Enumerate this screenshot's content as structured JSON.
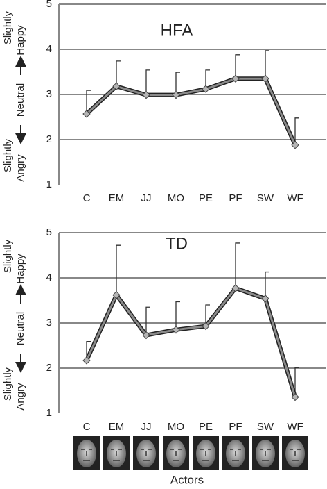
{
  "chart_data": [
    {
      "type": "line",
      "title": "HFA",
      "categories": [
        "C",
        "EM",
        "JJ",
        "MO",
        "PE",
        "PF",
        "SW",
        "WF"
      ],
      "series": [
        {
          "values": [
            2.57,
            3.18,
            2.99,
            2.99,
            3.12,
            3.35,
            3.35,
            1.88
          ],
          "errors": [
            0.52,
            0.56,
            0.55,
            0.5,
            0.42,
            0.53,
            0.62,
            0.6
          ],
          "color": "#8a8a8a"
        }
      ],
      "ylim": [
        1,
        5
      ],
      "yticks": [
        1,
        2,
        3,
        4,
        5
      ],
      "grid": true,
      "y_annotations": {
        "top": [
          "Slightly",
          "Happy"
        ],
        "middle": "Neutral",
        "bottom": [
          "Slightly",
          "Angry"
        ]
      }
    },
    {
      "type": "line",
      "title": "TD",
      "categories": [
        "C",
        "EM",
        "JJ",
        "MO",
        "PE",
        "PF",
        "SW",
        "WF"
      ],
      "series": [
        {
          "values": [
            2.17,
            3.62,
            2.73,
            2.85,
            2.93,
            3.77,
            3.54,
            1.36
          ],
          "errors": [
            0.42,
            1.1,
            0.62,
            0.62,
            0.47,
            1.0,
            0.59,
            0.65
          ],
          "color": "#8a8a8a"
        }
      ],
      "ylim": [
        1,
        5
      ],
      "yticks": [
        1,
        2,
        3,
        4,
        5
      ],
      "grid": true,
      "y_annotations": {
        "top": [
          "Slightly",
          "Happy"
        ],
        "middle": "Neutral",
        "bottom": [
          "Slightly",
          "Angry"
        ]
      },
      "x_label": "Actors"
    }
  ]
}
